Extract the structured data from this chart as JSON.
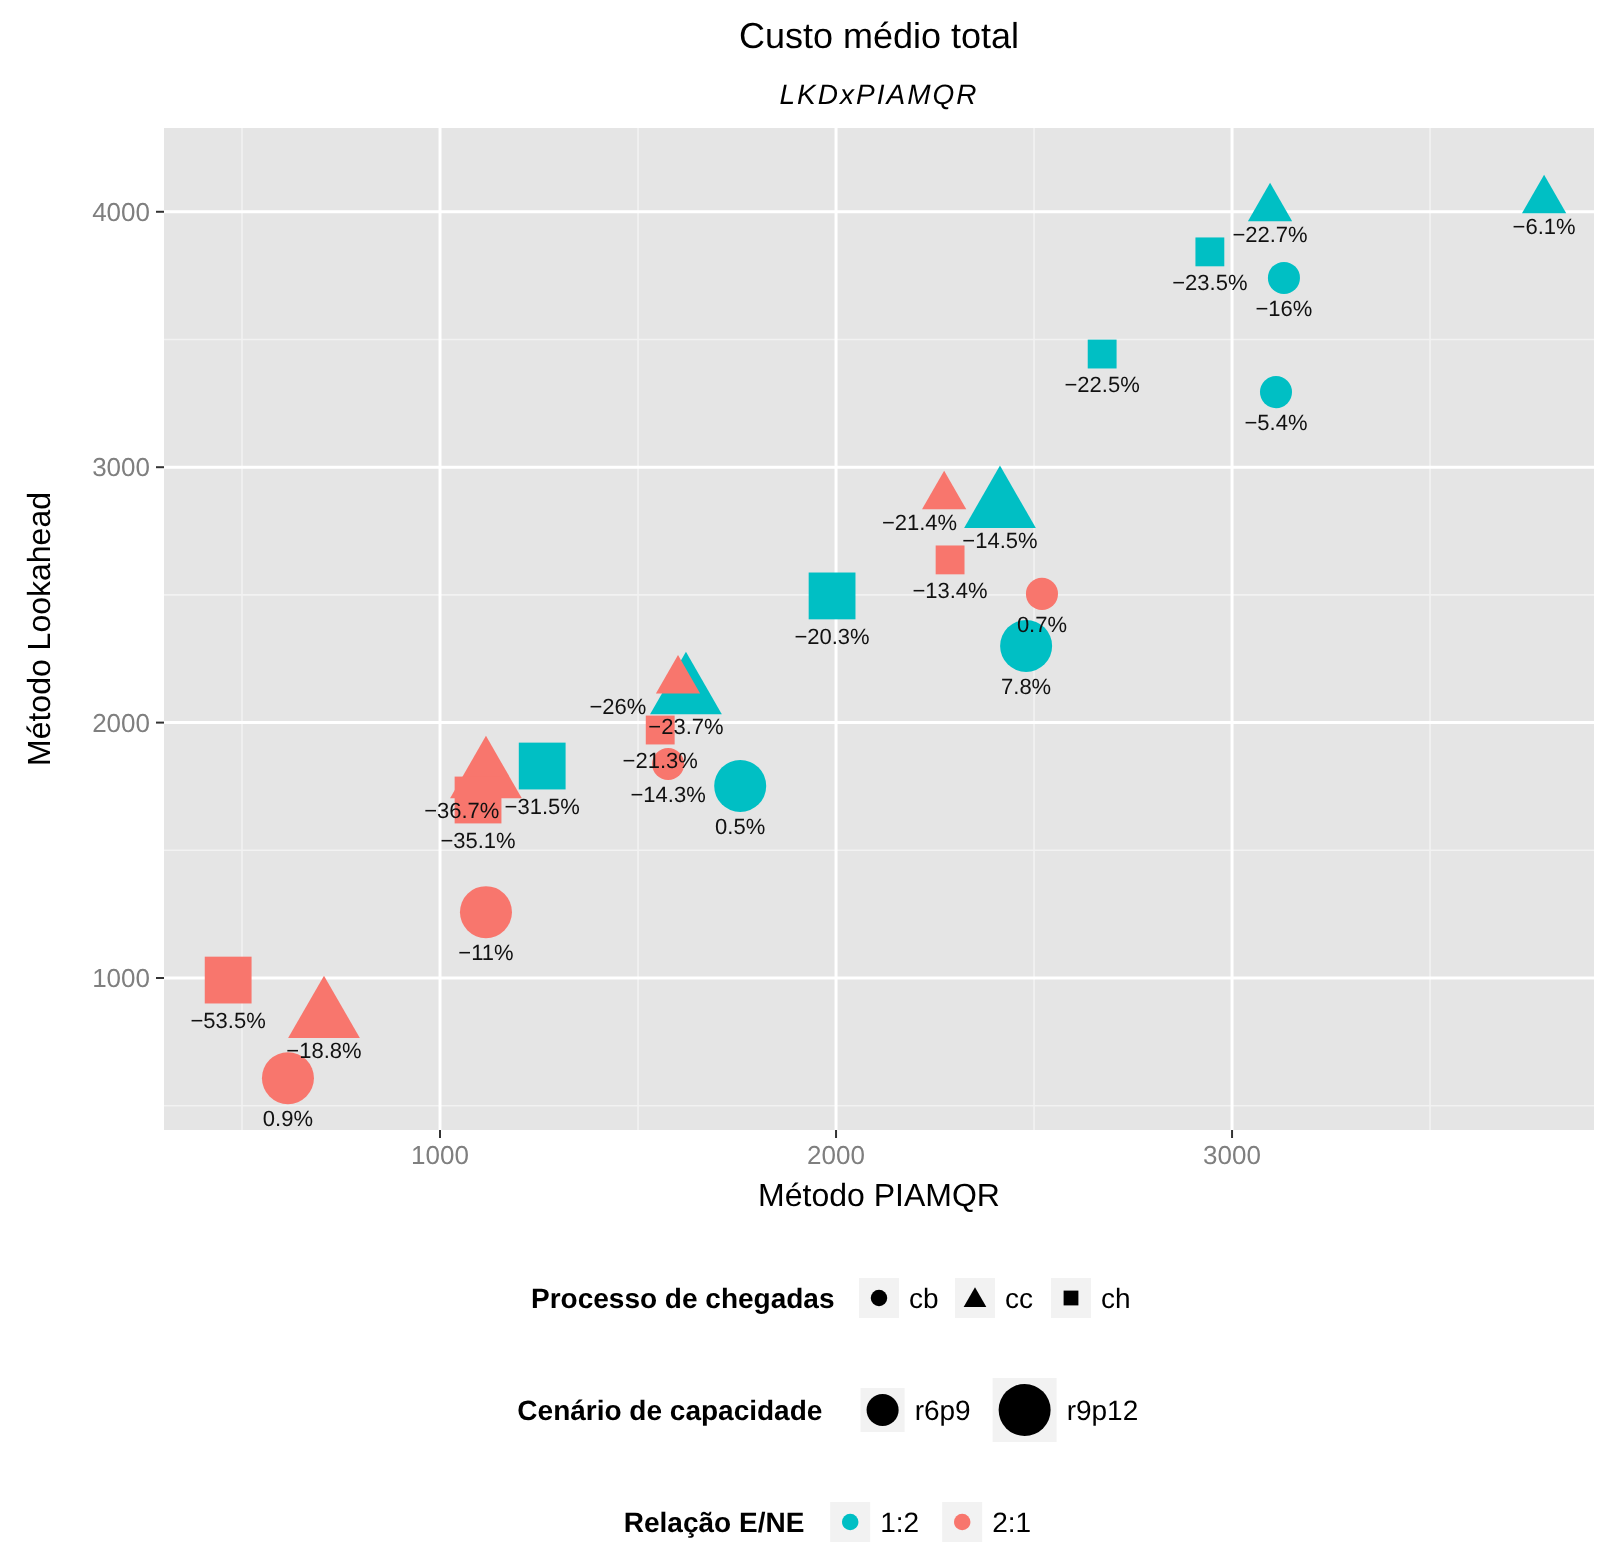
{
  "chart_data": {
    "type": "scatter",
    "title": "Custo médio total",
    "subtitle": "LKDxPIAMQR",
    "xlabel": "Método PIAMQR",
    "ylabel": "Método Lookahead",
    "xlim": [
      303,
      3914
    ],
    "xticks": [
      1000,
      2000,
      3000
    ],
    "ylim": [
      405,
      4328
    ],
    "yticks": [
      1000,
      2000,
      3000,
      4000
    ],
    "grid": true,
    "series": [
      {
        "color": "#00bfc4",
        "marker": "circle",
        "sizes": [
          0.38,
          0.38
        ],
        "x": [
          3131,
          3111
        ],
        "values": [
          3741,
          3294
        ]
      },
      {
        "color": "#00bfc4",
        "marker": "circle",
        "sizes": [
          1,
          1
        ],
        "x": [
          2480,
          1758
        ],
        "values": [
          2300,
          1752
        ]
      },
      {
        "color": "#00bfc4",
        "marker": "triangle",
        "sizes": [
          0.38,
          0.38
        ],
        "x": [
          3096,
          3788
        ],
        "values": [
          4031,
          4062
        ]
      },
      {
        "color": "#00bfc4",
        "marker": "triangle",
        "sizes": [
          1,
          1
        ],
        "x": [
          2414,
          1621
        ],
        "values": [
          2872,
          2143
        ]
      },
      {
        "color": "#00bfc4",
        "marker": "square",
        "sizes": [
          0.38,
          0.38
        ],
        "x": [
          2944,
          2672
        ],
        "values": [
          3843,
          3443
        ]
      },
      {
        "color": "#00bfc4",
        "marker": "square",
        "sizes": [
          1,
          1
        ],
        "x": [
          1990,
          1258
        ],
        "values": [
          2496,
          1830
        ]
      },
      {
        "color": "#f8766d",
        "marker": "circle",
        "sizes": [
          0.38,
          0.38
        ],
        "x": [
          2520,
          1576
        ],
        "values": [
          2504,
          1838
        ]
      },
      {
        "color": "#f8766d",
        "marker": "circle",
        "sizes": [
          1,
          1
        ],
        "x": [
          1116,
          616
        ],
        "values": [
          1258,
          608
        ]
      },
      {
        "color": "#f8766d",
        "marker": "triangle",
        "sizes": [
          0.38,
          0.38
        ],
        "x": [
          2273,
          1601
        ],
        "values": [
          2903,
          2182
        ]
      },
      {
        "color": "#f8766d",
        "marker": "triangle",
        "sizes": [
          1,
          1
        ],
        "x": [
          1116,
          707
        ],
        "values": [
          1814,
          875
        ]
      },
      {
        "color": "#f8766d",
        "marker": "square",
        "sizes": [
          0.38,
          0.38
        ],
        "x": [
          2288,
          1556
        ],
        "values": [
          2637,
          1971
        ]
      },
      {
        "color": "#f8766d",
        "marker": "square",
        "sizes": [
          1,
          1
        ],
        "x": [
          1096,
          465
        ],
        "values": [
          1697,
          992
        ]
      }
    ],
    "annotations": [
      {
        "text": "−16%",
        "x": 3131,
        "y": 3741
      },
      {
        "text": "−5.4%",
        "x": 3111,
        "y": 3294
      },
      {
        "text": "7.8%",
        "x": 2480,
        "y": 2300
      },
      {
        "text": "0.5%",
        "x": 1758,
        "y": 1752
      },
      {
        "text": "−22.7%",
        "x": 3096,
        "y": 4031
      },
      {
        "text": "−6.1%",
        "x": 3788,
        "y": 4062
      },
      {
        "text": "−14.5%",
        "x": 2414,
        "y": 2872
      },
      {
        "text": "−23.7%",
        "x": 1621,
        "y": 2143
      },
      {
        "text": "−23.5%",
        "x": 2944,
        "y": 3843
      },
      {
        "text": "−22.5%",
        "x": 2672,
        "y": 3443
      },
      {
        "text": "−20.3%",
        "x": 1990,
        "y": 2496
      },
      {
        "text": "−31.5%",
        "x": 1258,
        "y": 1830
      },
      {
        "text": "0.7%",
        "x": 2520,
        "y": 2504
      },
      {
        "text": "−14.3%",
        "x": 1576,
        "y": 1838
      },
      {
        "text": "−11%",
        "x": 1116,
        "y": 1258
      },
      {
        "text": "0.9%",
        "x": 616,
        "y": 608
      },
      {
        "text": "−21.4%",
        "x": 2273,
        "y": 2903
      },
      {
        "text": "−26%",
        "x": 1601,
        "y": 2182
      },
      {
        "text": "−36.7%",
        "x": 1116,
        "y": 1814
      },
      {
        "text": "−18.8%",
        "x": 707,
        "y": 875
      },
      {
        "text": "−13.4%",
        "x": 2288,
        "y": 2637
      },
      {
        "text": "−21.3%",
        "x": 1556,
        "y": 1971
      },
      {
        "text": "−35.1%",
        "x": 1096,
        "y": 1697
      },
      {
        "text": "−53.5%",
        "x": 465,
        "y": 992
      },
      "Processo de chegadas",
      "cb",
      "cc",
      "ch",
      "Cenário de capacidade",
      "r6p9",
      "r9p12",
      "Relação E/NE",
      "1:2",
      "2:1"
    ]
  }
}
